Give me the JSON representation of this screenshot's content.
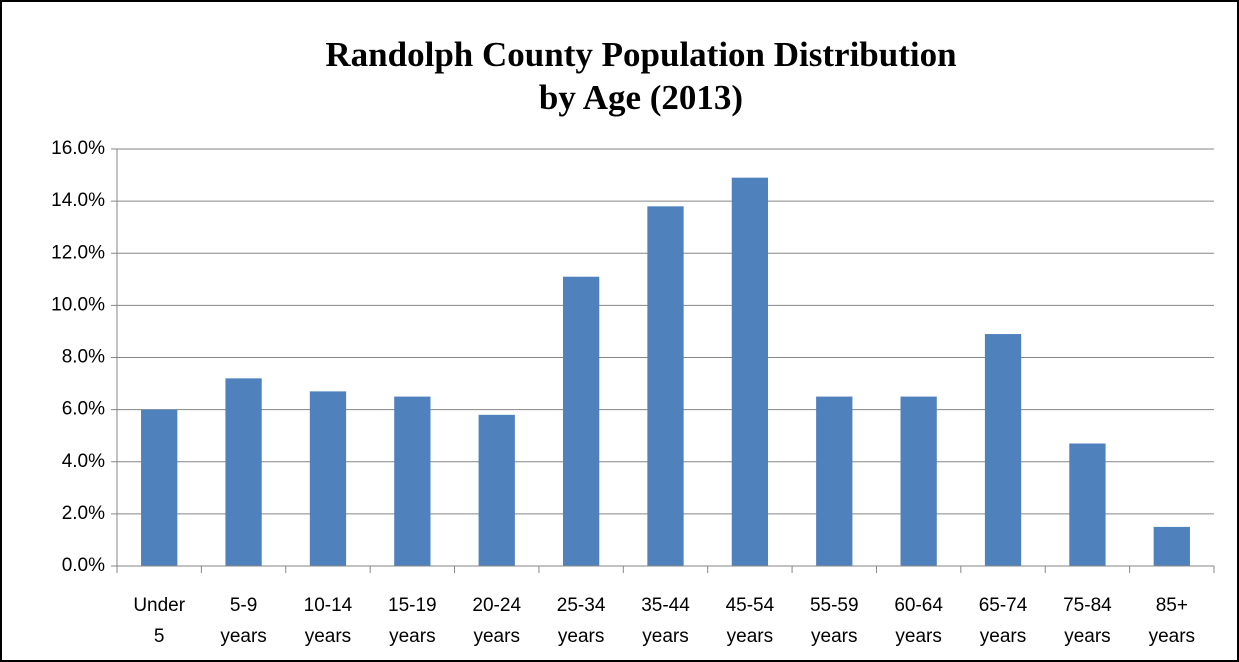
{
  "chart_data": {
    "type": "bar",
    "title": [
      "Randolph County Population Distribution",
      "by Age (2013)"
    ],
    "categories": [
      [
        "Under",
        "5"
      ],
      [
        "5-9",
        "years"
      ],
      [
        "10-14",
        "years"
      ],
      [
        "15-19",
        "years"
      ],
      [
        "20-24",
        "years"
      ],
      [
        "25-34",
        "years"
      ],
      [
        "35-44",
        "years"
      ],
      [
        "45-54",
        "years"
      ],
      [
        "55-59",
        "years"
      ],
      [
        "60-64",
        "years"
      ],
      [
        "65-74",
        "years"
      ],
      [
        "75-84",
        "years"
      ],
      [
        "85+",
        "years"
      ]
    ],
    "values": [
      6.0,
      7.2,
      6.7,
      6.5,
      5.8,
      11.1,
      13.8,
      14.9,
      6.5,
      6.5,
      8.9,
      4.7,
      1.5
    ],
    "color": "#4f81bd",
    "ylim": [
      0,
      16
    ],
    "yticks": [
      {
        "value": 0,
        "label": "0.0%"
      },
      {
        "value": 2,
        "label": "2.0%"
      },
      {
        "value": 4,
        "label": "4.0%"
      },
      {
        "value": 6,
        "label": "6.0%"
      },
      {
        "value": 8,
        "label": "8.0%"
      },
      {
        "value": 10,
        "label": "10.0%"
      },
      {
        "value": 12,
        "label": "12.0%"
      },
      {
        "value": 14,
        "label": "14.0%"
      },
      {
        "value": 16,
        "label": "16.0%"
      }
    ],
    "grid": true
  }
}
